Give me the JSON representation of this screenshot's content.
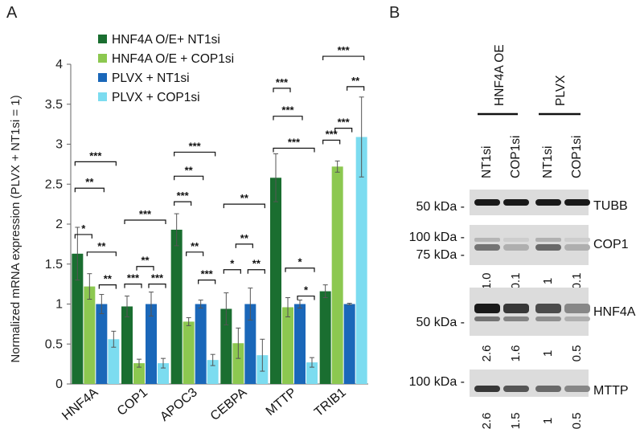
{
  "panel_a_label": "A",
  "panel_b_label": "B",
  "chart_data": {
    "type": "bar",
    "title": "",
    "xlabel": "",
    "ylabel": "Normalized mRNA expression (PLVX + NT1si = 1)",
    "ylim": [
      0,
      4
    ],
    "yticks": [
      "0",
      "0.5",
      "1",
      "1.5",
      "2",
      "2.5",
      "3",
      "3.5",
      "4"
    ],
    "legend_position": "top-left",
    "categories": [
      "HNF4A",
      "COP1",
      "APOC3",
      "CEBPA",
      "MTTP",
      "TRIB1"
    ],
    "series": [
      {
        "name": "HNF4A O/E+ NT1si",
        "color": "#1a6e30",
        "values": [
          1.63,
          0.97,
          1.93,
          0.94,
          2.58,
          1.16
        ],
        "errors": [
          0.33,
          0.13,
          0.2,
          0.2,
          0.3,
          0.08
        ]
      },
      {
        "name": "HNF4A O/E + COP1si",
        "color": "#8cc850",
        "values": [
          1.22,
          0.26,
          0.78,
          0.51,
          0.96,
          2.72
        ],
        "errors": [
          0.16,
          0.05,
          0.05,
          0.19,
          0.12,
          0.07
        ]
      },
      {
        "name": "PLVX + NT1si",
        "color": "#1a67b9",
        "values": [
          1.0,
          1.0,
          1.0,
          1.0,
          1.0,
          1.0
        ],
        "errors": [
          0.12,
          0.15,
          0.05,
          0.2,
          0.05,
          0.01
        ]
      },
      {
        "name": "PLVX + COP1si",
        "color": "#7cdcf0",
        "values": [
          0.56,
          0.26,
          0.3,
          0.36,
          0.27,
          3.09
        ],
        "errors": [
          0.1,
          0.06,
          0.07,
          0.2,
          0.06,
          0.5
        ]
      }
    ],
    "significance": [
      {
        "group": 0,
        "from": 0,
        "to": 1,
        "y": 1.87,
        "label": "*"
      },
      {
        "group": 0,
        "from": 0,
        "to": 2,
        "y": 2.45,
        "label": "**"
      },
      {
        "group": 0,
        "from": 0,
        "to": 3,
        "y": 2.78,
        "label": "***"
      },
      {
        "group": 0,
        "from": 1,
        "to": 3,
        "y": 1.65,
        "label": "**"
      },
      {
        "group": 0,
        "from": 2,
        "to": 3,
        "y": 1.24,
        "label": "**"
      },
      {
        "group": 1,
        "from": 0,
        "to": 1,
        "y": 1.25,
        "label": "***"
      },
      {
        "group": 1,
        "from": 0,
        "to": 3,
        "y": 2.05,
        "label": "***"
      },
      {
        "group": 1,
        "from": 1,
        "to": 2,
        "y": 1.47,
        "label": "**"
      },
      {
        "group": 1,
        "from": 2,
        "to": 3,
        "y": 1.25,
        "label": "***"
      },
      {
        "group": 2,
        "from": 0,
        "to": 1,
        "y": 2.28,
        "label": "***"
      },
      {
        "group": 2,
        "from": 0,
        "to": 2,
        "y": 2.6,
        "label": "**"
      },
      {
        "group": 2,
        "from": 0,
        "to": 3,
        "y": 2.9,
        "label": "***"
      },
      {
        "group": 2,
        "from": 1,
        "to": 2,
        "y": 1.65,
        "label": "**"
      },
      {
        "group": 2,
        "from": 2,
        "to": 3,
        "y": 1.3,
        "label": "***"
      },
      {
        "group": 3,
        "from": 0,
        "to": 1,
        "y": 1.43,
        "label": "*"
      },
      {
        "group": 3,
        "from": 0,
        "to": 3,
        "y": 2.25,
        "label": "**"
      },
      {
        "group": 3,
        "from": 1,
        "to": 2,
        "y": 1.75,
        "label": "**"
      },
      {
        "group": 3,
        "from": 2,
        "to": 3,
        "y": 1.43,
        "label": "**"
      },
      {
        "group": 4,
        "from": 0,
        "to": 1,
        "y": 3.7,
        "label": "***"
      },
      {
        "group": 4,
        "from": 0,
        "to": 2,
        "y": 3.35,
        "label": "***"
      },
      {
        "group": 4,
        "from": 0,
        "to": 3,
        "y": 2.95,
        "label": "***"
      },
      {
        "group": 4,
        "from": 1,
        "to": 3,
        "y": 1.45,
        "label": "*"
      },
      {
        "group": 4,
        "from": 2,
        "to": 3,
        "y": 1.1,
        "label": "*"
      },
      {
        "group": 5,
        "from": 0,
        "to": 1,
        "y": 3.05,
        "label": "***"
      },
      {
        "group": 5,
        "from": 0,
        "to": 3,
        "y": 4.1,
        "label": "***"
      },
      {
        "group": 5,
        "from": 1,
        "to": 2,
        "y": 3.2,
        "label": "***"
      },
      {
        "group": 5,
        "from": 2,
        "to": 3,
        "y": 3.72,
        "label": "**"
      }
    ]
  },
  "blot": {
    "group_labels": [
      "HNF4A OE",
      "PLVX"
    ],
    "lane_labels": [
      "NT1si",
      "COP1si",
      "NT1si",
      "COP1si"
    ],
    "rows": [
      {
        "protein": "TUBB",
        "markers": [
          "50 kDa -"
        ],
        "quant": [],
        "intensity": [
          1.0,
          1.0,
          1.0,
          1.0
        ]
      },
      {
        "protein": "COP1",
        "markers": [
          "100 kDa -",
          "75 kDa -"
        ],
        "quant": [
          "1.0",
          "0.1",
          "1",
          "0.1"
        ],
        "intensity": [
          0.55,
          0.25,
          0.6,
          0.25
        ]
      },
      {
        "protein": "HNF4A",
        "markers": [
          "50 kDa -"
        ],
        "quant": [
          "2.6",
          "1.6",
          "1",
          "0.5"
        ],
        "intensity": [
          1.0,
          0.85,
          0.75,
          0.45
        ]
      },
      {
        "protein": "MTTP",
        "markers": [
          "100 kDa -"
        ],
        "quant": [
          "2.6",
          "1.5",
          "1",
          "0.5"
        ],
        "intensity": [
          0.85,
          0.7,
          0.6,
          0.45
        ]
      }
    ]
  }
}
